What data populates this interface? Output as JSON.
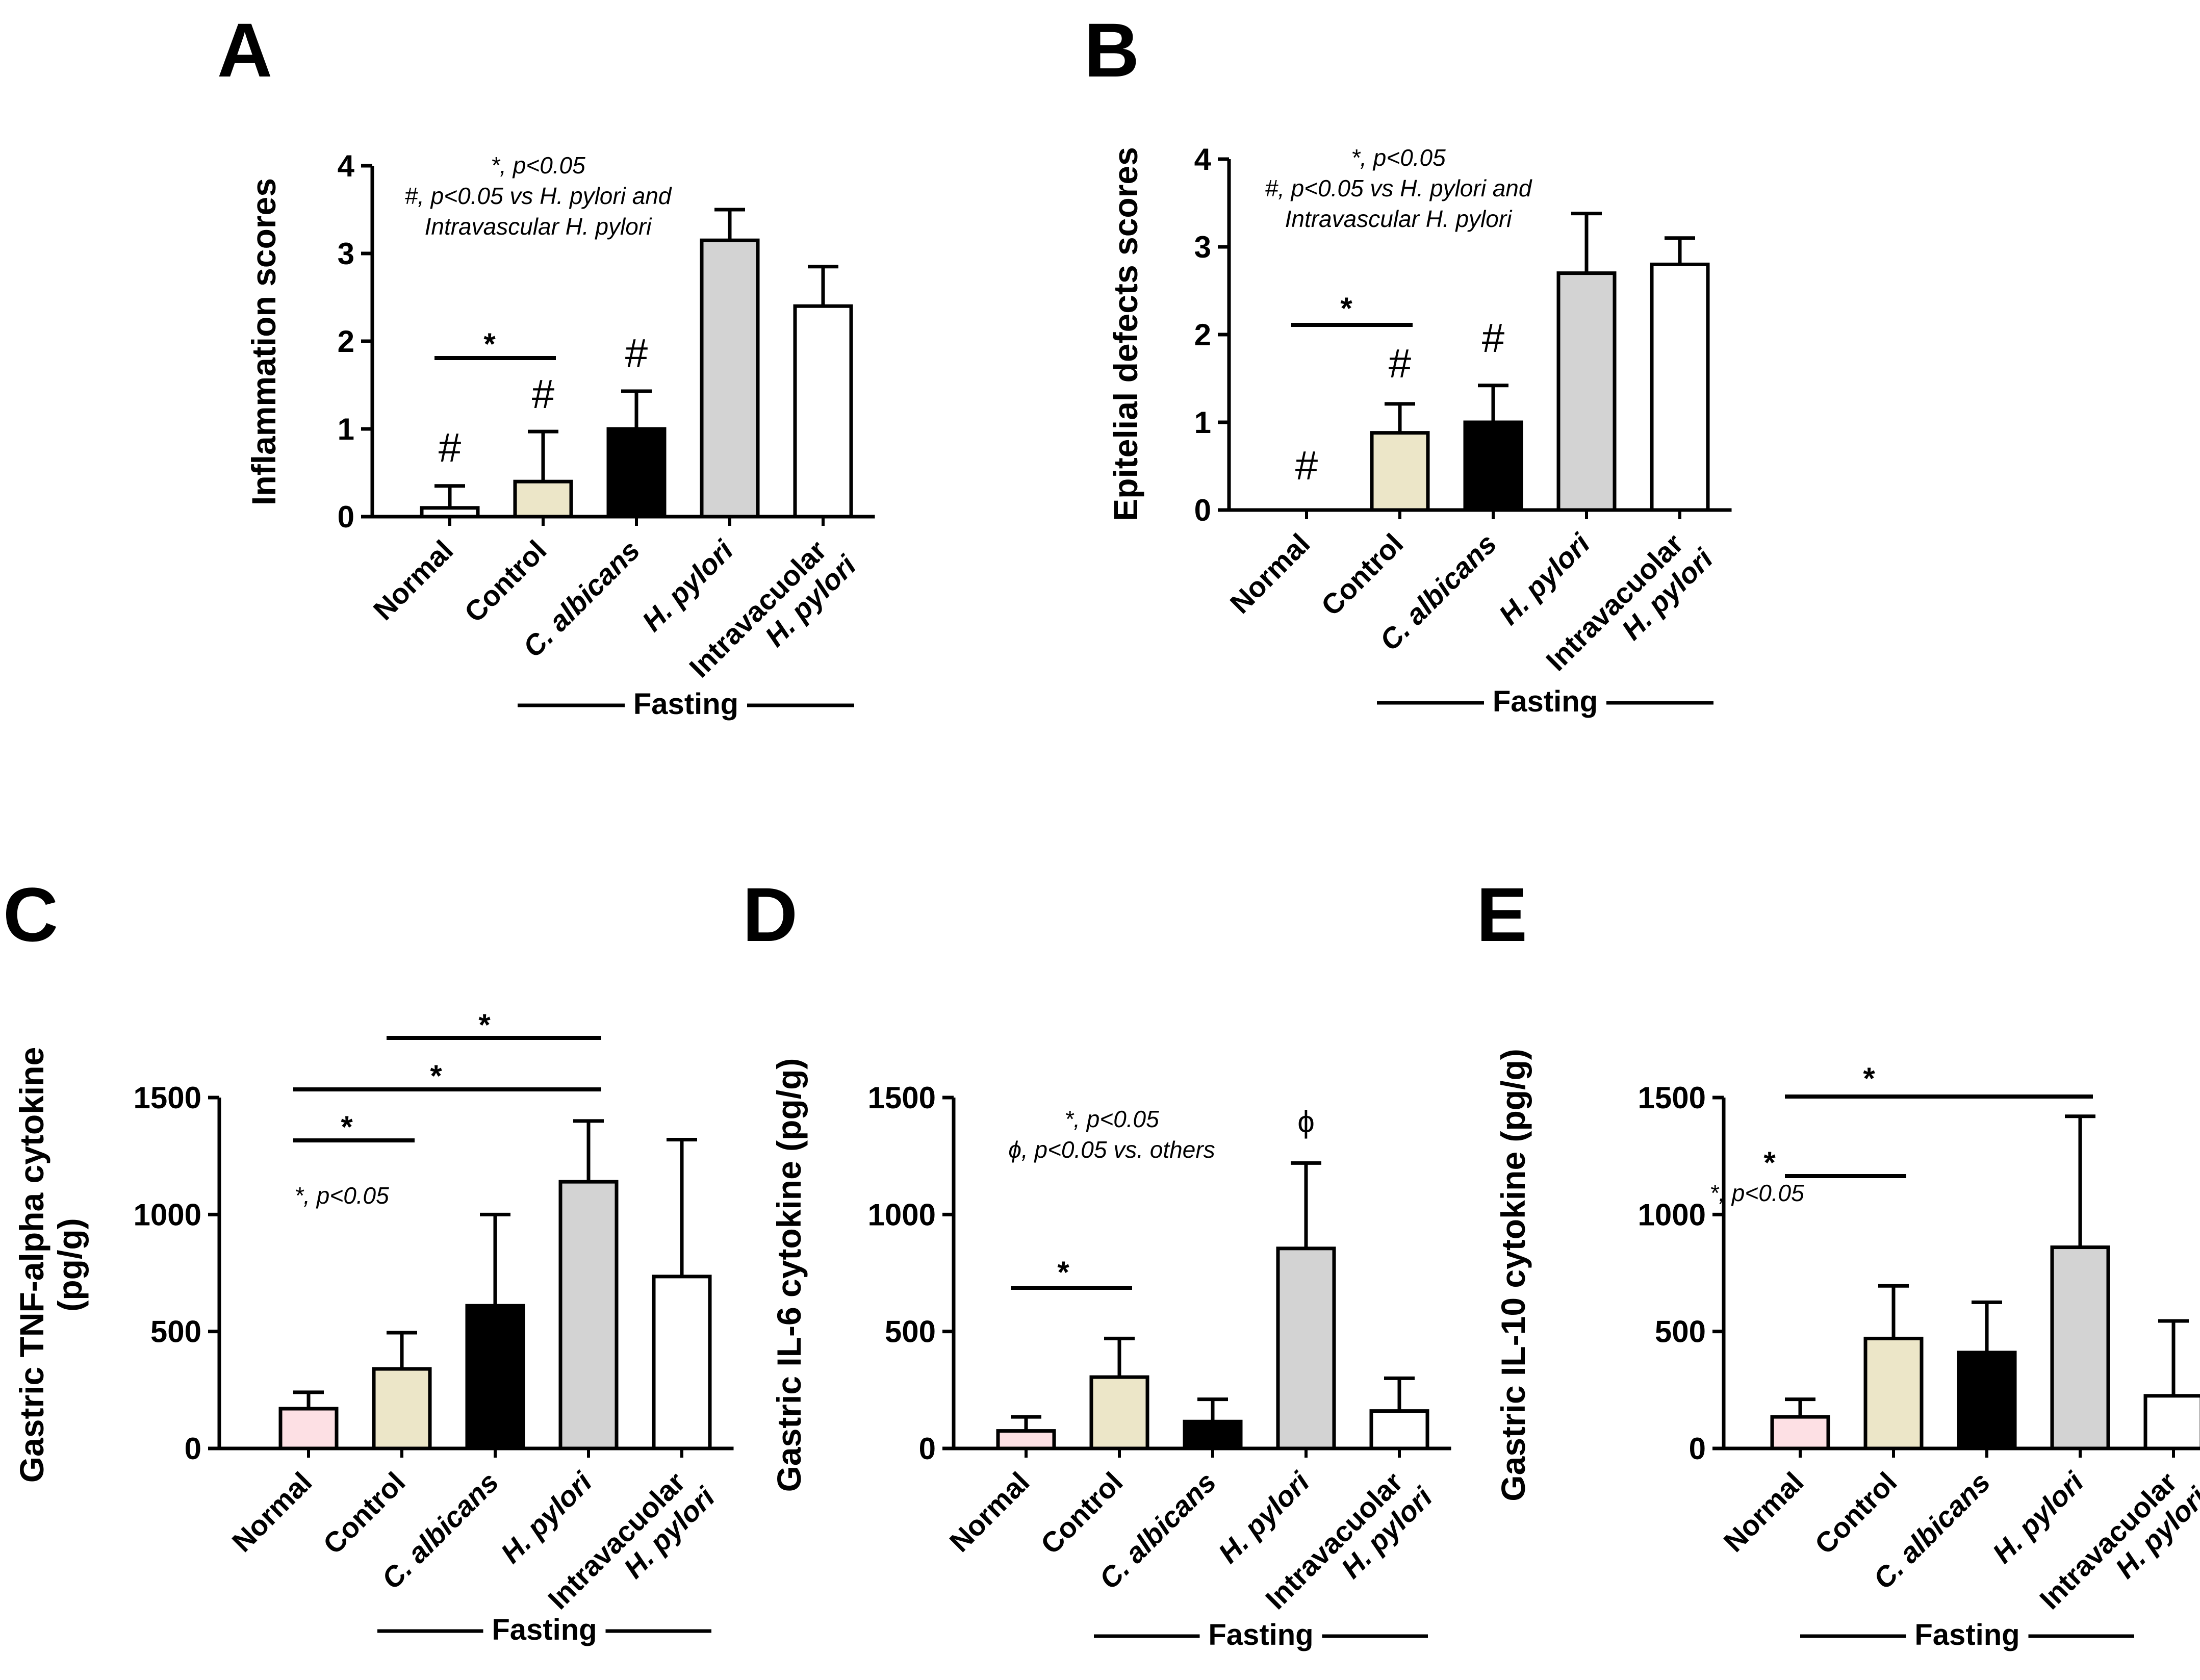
{
  "chart_data": [
    {
      "panel": "A",
      "type": "bar",
      "categories": [
        "Normal",
        "Control",
        "C. albicans",
        "H. pylori",
        "Intravacuolar H. pylori"
      ],
      "values": [
        0.1,
        0.4,
        1.0,
        3.15,
        2.4
      ],
      "errors": [
        0.25,
        0.57,
        0.43,
        0.35,
        0.45
      ],
      "colors": [
        "#ffffff",
        "#ece6c8",
        "#000000",
        "#d3d3d3",
        "#ffffff"
      ],
      "ylabel": "Inflammation scores",
      "ylim": [
        0,
        4
      ],
      "yticks": [
        "0",
        "1",
        "2",
        "3",
        "4"
      ],
      "group_label": "Fasting",
      "notes": [
        "*, p<0.05",
        "#, p<0.05 vs  H. pylori and",
        "Intravascular H. pylori"
      ],
      "hash_marks": [
        "#",
        "#",
        "#"
      ],
      "sig_lines": [
        {
          "from": 0,
          "to": 1,
          "label": "*"
        }
      ]
    },
    {
      "panel": "B",
      "type": "bar",
      "categories": [
        "Normal",
        "Control",
        "C. albicans",
        "H. pylori",
        "Intravacuolar H. pylori"
      ],
      "values": [
        0,
        0.88,
        1.0,
        2.7,
        2.8
      ],
      "errors": [
        0,
        0.33,
        0.42,
        0.68,
        0.3
      ],
      "colors": [
        "#ffffff",
        "#ece6c8",
        "#000000",
        "#d3d3d3",
        "#ffffff"
      ],
      "ylabel": "Epitelial defects scores",
      "ylim": [
        0,
        4
      ],
      "yticks": [
        "0",
        "1",
        "2",
        "3",
        "4"
      ],
      "group_label": "Fasting",
      "notes": [
        "*, p<0.05",
        "#, p<0.05 vs  H. pylori and",
        "Intravascular H. pylori"
      ],
      "hash_marks": [
        "#",
        "#",
        "#"
      ],
      "sig_lines": [
        {
          "from": 0,
          "to": 1,
          "label": "*"
        }
      ]
    },
    {
      "panel": "C",
      "type": "bar",
      "categories": [
        "Normal",
        "Control",
        "C. albicans",
        "H. pylori",
        "Intravacuolar H. pylori"
      ],
      "values": [
        170,
        340,
        610,
        1140,
        735
      ],
      "errors": [
        70,
        155,
        390,
        260,
        585
      ],
      "colors": [
        "#fde0e4",
        "#ece6c8",
        "#000000",
        "#d3d3d3",
        "#ffffff"
      ],
      "ylabel": "Gastric TNF-alpha cytokine",
      "ylabel2": "(pg/g)",
      "ylim": [
        0,
        1500
      ],
      "yticks": [
        "0",
        "500",
        "1000",
        "1500"
      ],
      "group_label": "Fasting",
      "notes": [
        "*, p<0.05"
      ],
      "sig_lines": [
        {
          "from": 0,
          "to": 1,
          "label": "*"
        },
        {
          "from": 0,
          "to": 3,
          "label": "*"
        },
        {
          "from": 1,
          "to": 3,
          "label": "*"
        }
      ]
    },
    {
      "panel": "D",
      "type": "bar",
      "categories": [
        "Normal",
        "Control",
        "C. albicans",
        "H. pylori",
        "Intravacuolar H. pylori"
      ],
      "values": [
        75,
        305,
        115,
        855,
        160
      ],
      "errors": [
        60,
        165,
        95,
        365,
        140
      ],
      "colors": [
        "#fde0e4",
        "#ece6c8",
        "#000000",
        "#d3d3d3",
        "#ffffff"
      ],
      "ylabel": "Gastric IL-6 cytokine (pg/g)",
      "ylim": [
        0,
        1500
      ],
      "yticks": [
        "0",
        "500",
        "1000",
        "1500"
      ],
      "group_label": "Fasting",
      "notes": [
        "*, p<0.05",
        "ϕ, p<0.05 vs. others"
      ],
      "phi_mark": "ϕ",
      "sig_lines": [
        {
          "from": 0,
          "to": 1,
          "label": "*"
        }
      ]
    },
    {
      "panel": "E",
      "type": "bar",
      "categories": [
        "Normal",
        "Control",
        "C. albicans",
        "H. pylori",
        "Intravacuolar H. pylori"
      ],
      "values": [
        135,
        470,
        410,
        860,
        225
      ],
      "errors": [
        75,
        225,
        215,
        560,
        320
      ],
      "colors": [
        "#fde0e4",
        "#ece6c8",
        "#000000",
        "#d3d3d3",
        "#ffffff"
      ],
      "ylabel": "Gastric IL-10 cytokine (pg/g)",
      "ylim": [
        0,
        1500
      ],
      "yticks": [
        "0",
        "500",
        "1000",
        "1500"
      ],
      "group_label": "Fasting",
      "notes": [
        "*, p<0.05"
      ],
      "sig_lines": [
        {
          "from": 0,
          "to": 1,
          "label": "*"
        },
        {
          "from": 0,
          "to": 3,
          "label": "*"
        }
      ]
    }
  ]
}
